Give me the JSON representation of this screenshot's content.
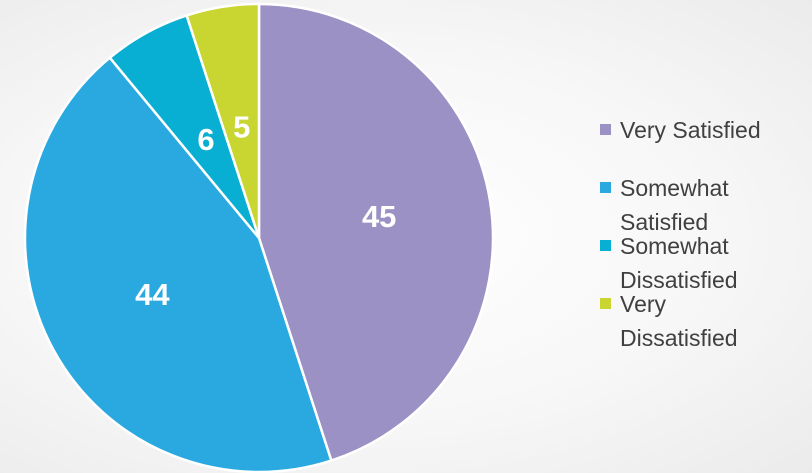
{
  "chart_data": {
    "type": "pie",
    "categories": [
      "Very Satisfied",
      "Somewhat Satisfied",
      "Somewhat Dissatisfied",
      "Very Dissatisfied"
    ],
    "values": [
      45,
      44,
      6,
      5
    ],
    "colors": [
      "#9b91c5",
      "#2aa9e0",
      "#09afd3",
      "#c9d531"
    ],
    "legend": "right"
  }
}
